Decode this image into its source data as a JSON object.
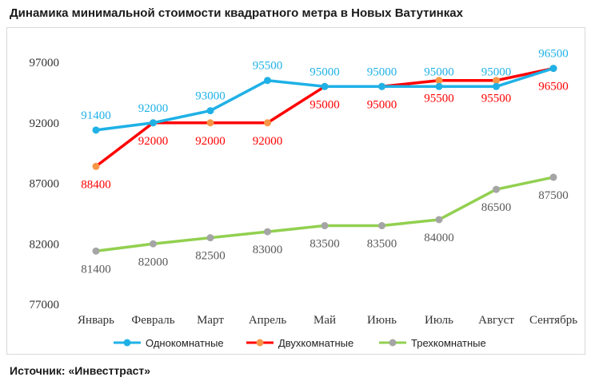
{
  "title": "Динамика минимальной стоимости квадратного метра в Новых Ватутинках",
  "source": "Источник: «Инвесттраст»",
  "chart_data": {
    "type": "line",
    "categories": [
      "Январь",
      "Февраль",
      "Март",
      "Апрель",
      "Май",
      "Июнь",
      "Июль",
      "Август",
      "Сентябрь"
    ],
    "y_ticks": [
      "77000",
      "82000",
      "87000",
      "92000",
      "97000"
    ],
    "ylim": [
      77000,
      98500
    ],
    "grid": false,
    "legend_position": "bottom",
    "series": [
      {
        "name": "Однокомнатные",
        "color": "#1fb1e6",
        "marker_color": "#1fb1e6",
        "values": [
          91400,
          92000,
          93000,
          95500,
          95000,
          95000,
          95000,
          95000,
          96500
        ],
        "labels": [
          "91400",
          "92000",
          "93000",
          "95500",
          "95000",
          "95000",
          "95000",
          "95000",
          "96500"
        ],
        "label_position": "above"
      },
      {
        "name": "Двухкомнатные",
        "color": "#ff0000",
        "marker_color": "#f79646",
        "values": [
          88400,
          92000,
          92000,
          92000,
          95000,
          95000,
          95500,
          95500,
          96500
        ],
        "labels": [
          "88400",
          "92000",
          "92000",
          "92000",
          "95000",
          "95000",
          "95500",
          "95500",
          "96500"
        ],
        "label_position": "below"
      },
      {
        "name": "Трехкомнатные",
        "color": "#92d050",
        "marker_color": "#a5a5a5",
        "values": [
          81400,
          82000,
          82500,
          83000,
          83500,
          83500,
          84000,
          86500,
          87500
        ],
        "labels": [
          "81400",
          "82000",
          "82500",
          "83000",
          "83500",
          "83500",
          "84000",
          "86500",
          "87500"
        ],
        "label_position": "below"
      }
    ]
  }
}
